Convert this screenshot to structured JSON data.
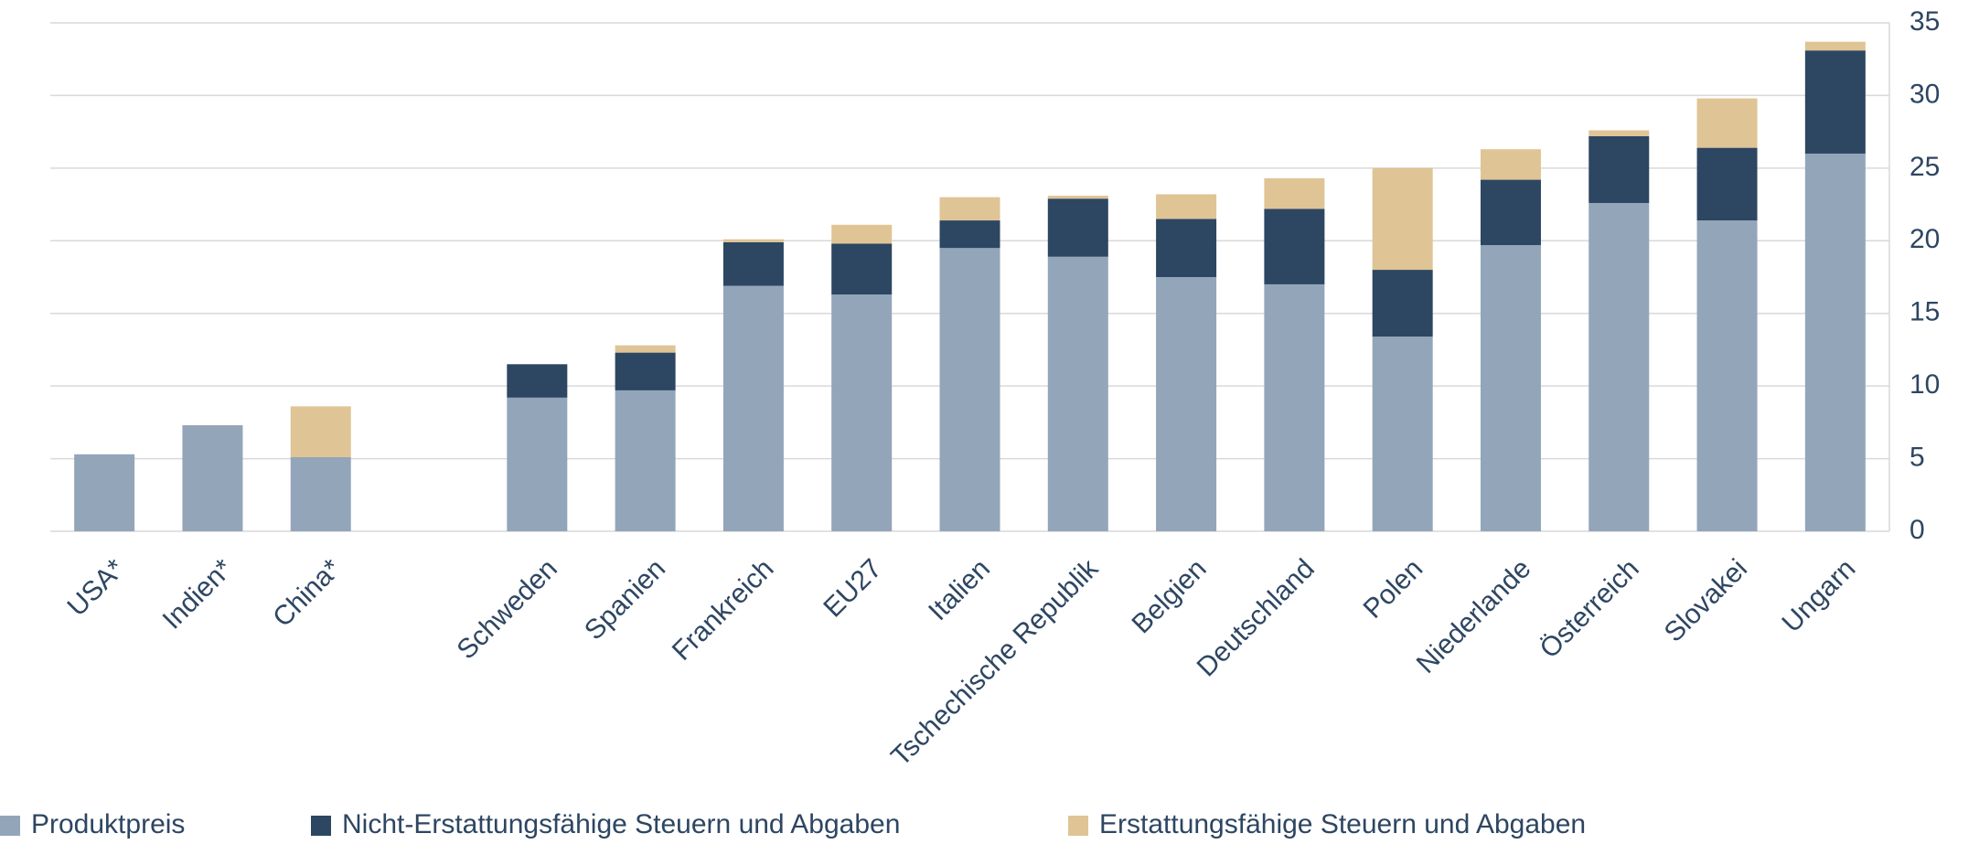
{
  "chart_data": {
    "type": "stacked_bar",
    "categories": [
      "USA*",
      "Indien*",
      "China*",
      null,
      "Schweden",
      "Spanien",
      "Frankreich",
      "EU27",
      "Italien",
      "Tschechische Republik",
      "Belgien",
      "Deutschland",
      "Polen",
      "Niederlande",
      "Österreich",
      "Slovakei",
      "Ungarn"
    ],
    "series": [
      {
        "name": "Produktpreis",
        "color": "#93a5b9",
        "values": [
          5.3,
          7.3,
          5.1,
          null,
          9.2,
          9.7,
          16.9,
          16.3,
          19.5,
          18.9,
          17.5,
          17.0,
          13.4,
          19.7,
          22.6,
          21.4,
          26.0
        ]
      },
      {
        "name": "Nicht-Erstattungsfähige Steuern und Abgaben",
        "color": "#2d4662",
        "values": [
          0,
          0,
          0,
          null,
          2.3,
          2.6,
          3.0,
          3.5,
          1.9,
          4.0,
          4.0,
          5.2,
          4.6,
          4.5,
          4.6,
          5.0,
          7.1
        ]
      },
      {
        "name": "Erstattungsfähige Steuern und Abgaben",
        "color": "#dfc495",
        "values": [
          0,
          0,
          3.5,
          null,
          0,
          0.5,
          0.2,
          1.3,
          1.6,
          0.2,
          1.7,
          2.1,
          7.0,
          2.1,
          0.4,
          3.4,
          0.6
        ]
      }
    ],
    "ylim": [
      0,
      35
    ],
    "yticks": [
      0,
      5,
      10,
      15,
      20,
      25,
      30,
      35
    ],
    "grid": true,
    "y_axis_side": "right",
    "legend": "bottom"
  }
}
